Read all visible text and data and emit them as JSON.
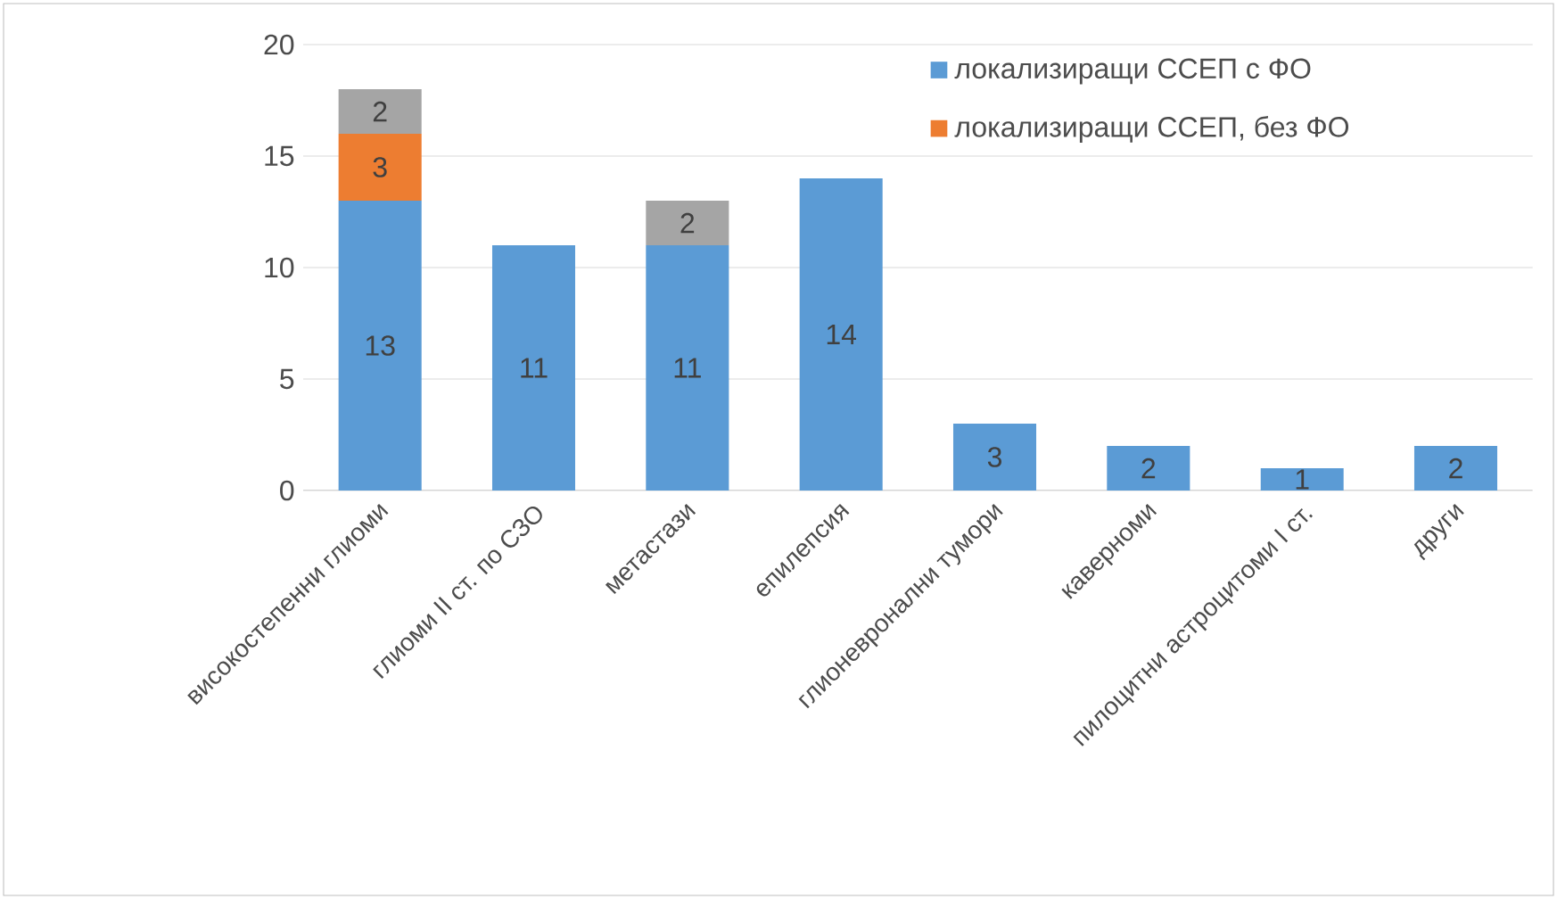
{
  "chart_data": {
    "type": "bar",
    "stacked": true,
    "categories": [
      "високостепенни глиоми",
      "глиоми II ст. по СЗО",
      "метастази",
      "епилепсия",
      "глионевронални тумори",
      "каверноми",
      "пилоцитни астроцитоми I ст.",
      "други"
    ],
    "series": [
      {
        "name": "локализиращи ССЕП с ФО",
        "color": "#5b9bd5",
        "values": [
          13,
          11,
          11,
          14,
          3,
          2,
          1,
          2
        ]
      },
      {
        "name": "локализиращи ССЕП, без ФО",
        "color": "#ed7d31",
        "values": [
          3,
          null,
          null,
          null,
          null,
          null,
          null,
          null
        ]
      },
      {
        "color": "#a5a5a5",
        "values": [
          2,
          null,
          2,
          null,
          null,
          null,
          null,
          null
        ]
      }
    ],
    "ylim": [
      0,
      20
    ],
    "yticks": [
      0,
      5,
      10,
      15,
      20
    ],
    "grid": "y",
    "legend": "top right",
    "data_labels": true
  }
}
